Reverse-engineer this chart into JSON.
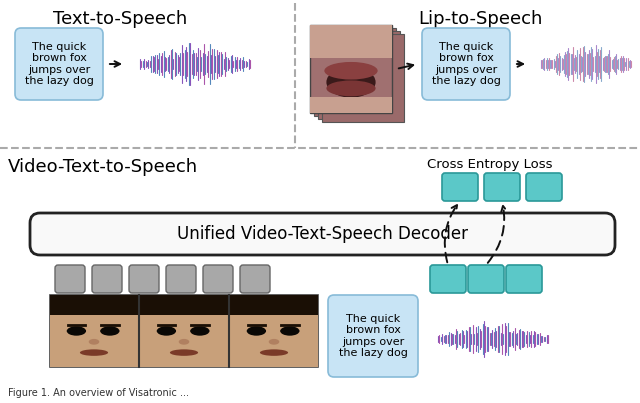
{
  "bg_color": "#ffffff",
  "tts_label": "Text-to-Speech",
  "lts_label": "Lip-to-Speech",
  "vtts_label": "Video-Text-to-Speech",
  "decoder_label": "Unified Video-Text-Speech Decoder",
  "loss_label": "Cross Entropy Loss",
  "text_box_text": "The quick\nbrown fox\njumps over\nthe lazy dog",
  "text_box_color": "#c8e4f5",
  "text_box_border": "#88bbd8",
  "teal_color": "#5bc8c8",
  "teal_border": "#2a9898",
  "gray_color": "#a8a8a8",
  "gray_border": "#666666",
  "arrow_color": "#111111",
  "divider_color": "#aaaaaa",
  "decoder_box_bg": "#f9f9f9",
  "decoder_box_border": "#222222",
  "waveform_colors_1": [
    "#8855bb",
    "#aa55aa",
    "#5588bb"
  ],
  "waveform_colors_2": [
    "#aa88cc",
    "#cc88aa",
    "#88aacc"
  ],
  "lip_bg": "#8a5a60",
  "lip_bg2": "#7a4a50",
  "caption": "Figure 1. An overview of Visatronic ..."
}
